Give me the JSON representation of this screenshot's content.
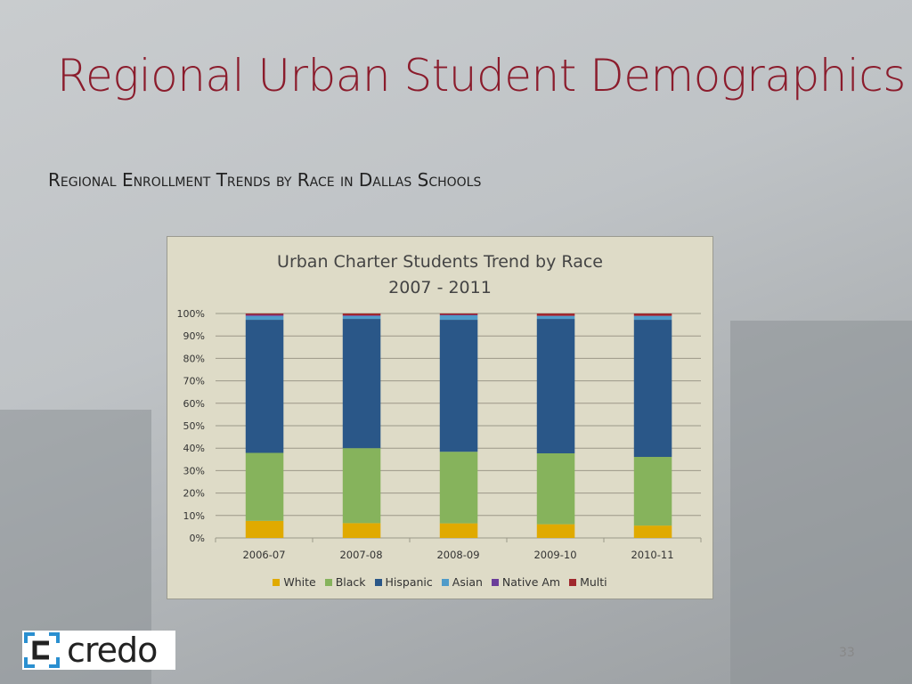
{
  "slide": {
    "title": "Regional Urban Student Demographics",
    "subtitle": "Regional Enrollment Trends by Race in Dallas Schools",
    "page_number": "33",
    "logo_text": "credo"
  },
  "chart_data": {
    "type": "bar",
    "stacked": true,
    "percent": true,
    "title": "Urban Charter Students Trend by Race",
    "subtitle": "2007 - 2011",
    "categories": [
      "2006-07",
      "2007-08",
      "2008-09",
      "2009-10",
      "2010-11"
    ],
    "ylim": [
      0,
      100
    ],
    "yticks": [
      "0%",
      "10%",
      "20%",
      "30%",
      "40%",
      "50%",
      "60%",
      "70%",
      "80%",
      "90%",
      "100%"
    ],
    "grid": true,
    "legend_position": "bottom",
    "series": [
      {
        "name": "White",
        "color": "#e0aa00",
        "values": [
          7.6,
          6.6,
          6.5,
          6.1,
          5.5
        ]
      },
      {
        "name": "Black",
        "color": "#86b35c",
        "values": [
          30.3,
          33.4,
          31.9,
          31.6,
          30.6
        ]
      },
      {
        "name": "Hispanic",
        "color": "#2a5788",
        "values": [
          59.3,
          57.6,
          58.8,
          59.9,
          61.1
        ]
      },
      {
        "name": "Asian",
        "color": "#4f9bc9",
        "values": [
          1.7,
          1.3,
          2.0,
          1.3,
          1.7
        ]
      },
      {
        "name": "Native Am",
        "color": "#6a3d9a",
        "values": [
          0.5,
          0.3,
          0.2,
          0.1,
          0.1
        ]
      },
      {
        "name": "Multi",
        "color": "#a0282d",
        "values": [
          0.6,
          0.8,
          0.6,
          1.0,
          1.0
        ]
      }
    ]
  }
}
